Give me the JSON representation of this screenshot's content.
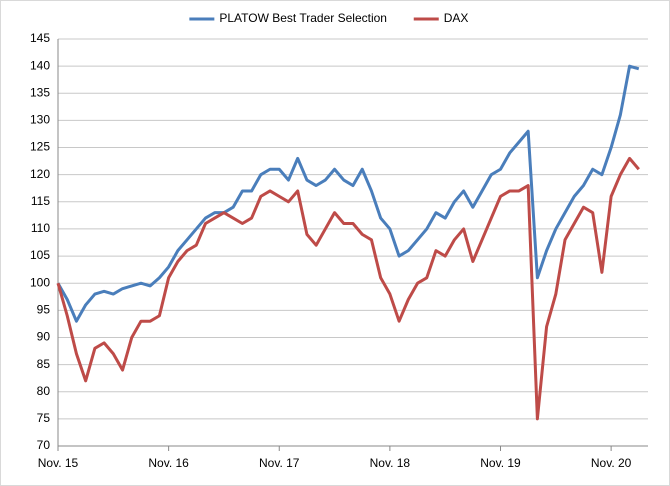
{
  "chart_data": {
    "type": "line",
    "categories": [
      "Nov. 15",
      null,
      null,
      null,
      null,
      null,
      null,
      null,
      null,
      null,
      null,
      null,
      "Nov. 16",
      null,
      null,
      null,
      null,
      null,
      null,
      null,
      null,
      null,
      null,
      null,
      "Nov. 17",
      null,
      null,
      null,
      null,
      null,
      null,
      null,
      null,
      null,
      null,
      null,
      "Nov. 18",
      null,
      null,
      null,
      null,
      null,
      null,
      null,
      null,
      null,
      null,
      null,
      "Nov. 19",
      null,
      null,
      null,
      null,
      null,
      null,
      null,
      null,
      null,
      null,
      null,
      "Nov. 20",
      null,
      null,
      null,
      null
    ],
    "series": [
      {
        "name": "PLATOW Best Trader Selection",
        "color": "#4a7ebb",
        "values": [
          100,
          97,
          93,
          96,
          98,
          98.5,
          98,
          99,
          99.5,
          100,
          99.5,
          101,
          103,
          106,
          108,
          110,
          112,
          113,
          113,
          114,
          117,
          117,
          120,
          121,
          121,
          119,
          123,
          119,
          118,
          119,
          121,
          119,
          118,
          121,
          117,
          112,
          110,
          105,
          106,
          108,
          110,
          113,
          112,
          115,
          117,
          114,
          117,
          120,
          121,
          124,
          126,
          128,
          101,
          106,
          110,
          113,
          116,
          118,
          121,
          120,
          125,
          131,
          140,
          139.5,
          null
        ]
      },
      {
        "name": "DAX",
        "color": "#be4b48",
        "values": [
          100,
          94,
          87,
          82,
          88,
          89,
          87,
          84,
          90,
          93,
          93,
          94,
          101,
          104,
          106,
          107,
          111,
          112,
          113,
          112,
          111,
          112,
          116,
          117,
          116,
          115,
          117,
          109,
          107,
          110,
          113,
          111,
          111,
          109,
          108,
          101,
          98,
          93,
          97,
          100,
          101,
          106,
          105,
          108,
          110,
          104,
          108,
          112,
          116,
          117,
          117,
          118,
          75,
          92,
          98,
          108,
          111,
          114,
          113,
          102,
          116,
          120,
          123,
          121,
          null
        ]
      }
    ],
    "ylim": [
      70,
      145
    ],
    "yticks": [
      70,
      75,
      80,
      85,
      90,
      95,
      100,
      105,
      110,
      115,
      120,
      125,
      130,
      135,
      140,
      145
    ],
    "grid": true,
    "legend": "top"
  }
}
